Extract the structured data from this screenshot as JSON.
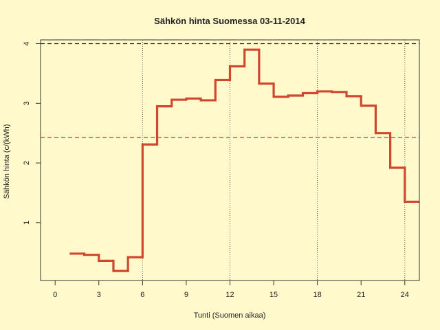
{
  "chart_data": {
    "type": "line",
    "step": true,
    "title": "Sähkön hinta Suomessa 03-11-2014",
    "xlabel": "Tunti (Suomen aikaa)",
    "ylabel": "Sähkön hinta (c/(kWh)",
    "xlim": [
      -1,
      25
    ],
    "ylim": [
      0.0,
      4.0
    ],
    "x_ticks": [
      0,
      3,
      6,
      9,
      12,
      15,
      18,
      21,
      24
    ],
    "x_tick_labels": [
      "0",
      "3",
      "6",
      "9",
      "12",
      "15",
      "18",
      "21",
      "24"
    ],
    "y_ticks": [
      1,
      2,
      3,
      4
    ],
    "y_tick_labels": [
      "1",
      "2",
      "3",
      "4"
    ],
    "vertical_gridlines_x": [
      6,
      12,
      18,
      24
    ],
    "reference_lines": [
      {
        "y": 4.0,
        "color": "#222222",
        "style": "dashed"
      },
      {
        "y": 2.43,
        "color": "#c0392b",
        "style": "dashed"
      }
    ],
    "series_color": "#d0462f",
    "x": [
      1,
      2,
      3,
      4,
      5,
      6,
      7,
      8,
      9,
      10,
      11,
      12,
      13,
      14,
      15,
      16,
      17,
      18,
      19,
      20,
      21,
      22,
      23,
      24
    ],
    "y": [
      0.48,
      0.46,
      0.36,
      0.19,
      0.42,
      2.31,
      2.95,
      3.06,
      3.08,
      3.05,
      3.39,
      3.62,
      3.9,
      3.33,
      3.11,
      3.13,
      3.17,
      3.2,
      3.19,
      3.12,
      2.96,
      2.5,
      1.92,
      1.35
    ]
  }
}
